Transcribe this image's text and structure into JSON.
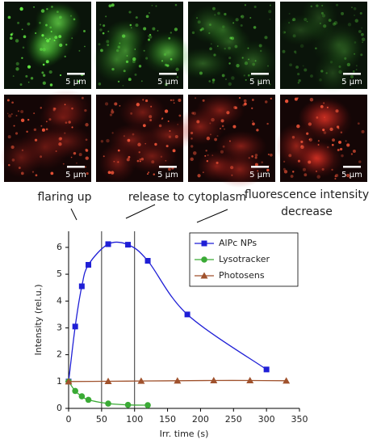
{
  "images": {
    "panels": [
      {
        "channel": "green",
        "scale_bar": "5 µm"
      },
      {
        "channel": "green",
        "scale_bar": "5 µm"
      },
      {
        "channel": "green",
        "scale_bar": "5 µm"
      },
      {
        "channel": "green",
        "scale_bar": "5 µm"
      },
      {
        "channel": "red",
        "scale_bar": "5 µm"
      },
      {
        "channel": "red",
        "scale_bar": "5 µm"
      },
      {
        "channel": "red",
        "scale_bar": "5 µm"
      },
      {
        "channel": "red",
        "scale_bar": "5 µm"
      }
    ]
  },
  "annotations": [
    [
      "flaring up"
    ],
    [
      "release to cytoplasm"
    ],
    [
      "fluorescence intensity",
      "decrease"
    ]
  ],
  "chart_data": {
    "type": "line",
    "xlabel": "Irr. time (s)",
    "ylabel": "Intensity (rel.u.)",
    "xlim": [
      0,
      350
    ],
    "ylim": [
      0,
      6.6
    ],
    "xticks": [
      0,
      50,
      100,
      150,
      200,
      250,
      300,
      350
    ],
    "yticks": [
      0,
      1,
      2,
      3,
      4,
      5,
      6
    ],
    "vlines": [
      50,
      100
    ],
    "legend": "upper right",
    "series": [
      {
        "name": "AlPc NPs",
        "color": "#1f1fd6",
        "marker": "square",
        "x": [
          0,
          10,
          20,
          30,
          60,
          90,
          120,
          180,
          300
        ],
        "values": [
          1,
          3.05,
          4.55,
          5.35,
          6.12,
          6.1,
          5.5,
          3.5,
          1.45
        ]
      },
      {
        "name": "Lysotracker",
        "color": "#3aaa35",
        "marker": "circle",
        "x": [
          0,
          10,
          20,
          30,
          60,
          90,
          120
        ],
        "values": [
          1,
          0.65,
          0.45,
          0.32,
          0.18,
          0.13,
          0.12
        ]
      },
      {
        "name": "Photosens",
        "color": "#a0522d",
        "marker": "triangle",
        "x": [
          0,
          60,
          110,
          165,
          220,
          275,
          330
        ],
        "values": [
          1,
          1.01,
          1.02,
          1.03,
          1.04,
          1.04,
          1.03
        ]
      }
    ]
  }
}
